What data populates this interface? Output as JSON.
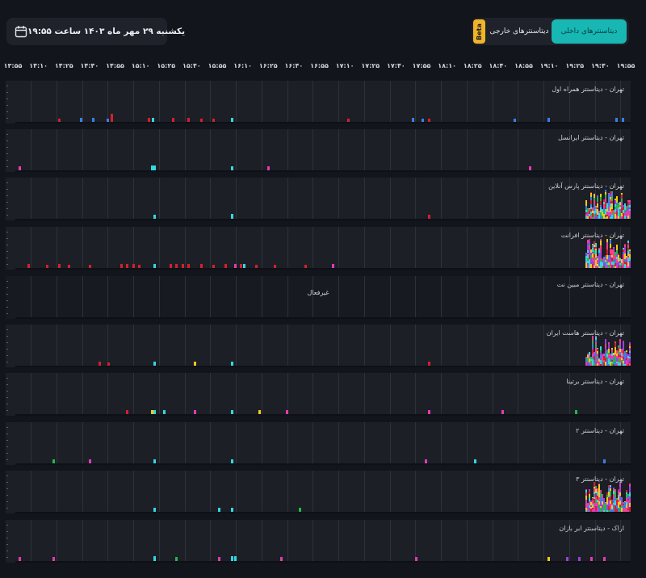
{
  "header": {
    "date_text": "یکشنبه ۲۹ مهر ماه ۱۴۰۳ ساعت ۱۹:۵۵",
    "calendar_icon": "calendar-icon",
    "tabs": {
      "beta": "Beta",
      "external": "دیتاسنترهای خارجی",
      "internal": "دیتاسنترهای داخلی"
    },
    "colors": {
      "accent": "#18b7b4",
      "beta": "#f0b32a"
    }
  },
  "time_axis": [
    "۱۳:۵۵",
    "۱۴:۱۰",
    "۱۴:۲۵",
    "۱۴:۴۰",
    "۱۴:۵۵",
    "۱۵:۱۰",
    "۱۵:۲۵",
    "۱۵:۴۰",
    "۱۵:۵۵",
    "۱۶:۱۰",
    "۱۶:۲۵",
    "۱۶:۴۰",
    "۱۶:۵۵",
    "۱۷:۱۰",
    "۱۷:۲۵",
    "۱۷:۴۰",
    "۱۷:۵۵",
    "۱۸:۱۰",
    "۱۸:۲۵",
    "۱۸:۴۰",
    "۱۸:۵۵",
    "۱۹:۱۰",
    "۱۹:۲۵",
    "۱۹:۴۰",
    "۱۹:۵۵"
  ],
  "panels": [
    {
      "title": "تهران - دیتاسنتر همراه اول",
      "status": "active"
    },
    {
      "title": "تهران - دیتاسنتر ایرانسل",
      "status": "active"
    },
    {
      "title": "تهران - دیتاسنتر پارس آنلاین",
      "status": "active"
    },
    {
      "title": "تهران - دیتاسنتر افرانت",
      "status": "active"
    },
    {
      "title": "تهران - دیتاسنتر مبین نت",
      "status": "inactive",
      "inactive_label": "غیرفعال"
    },
    {
      "title": "تهران - دیتاسنتر هاست ایران",
      "status": "active"
    },
    {
      "title": "تهران - دیتاسنتر برتینا",
      "status": "active"
    },
    {
      "title": "تهران - دیتاسنتر ۲",
      "status": "active"
    },
    {
      "title": "تهران - دیتاسنتر ۳",
      "status": "active"
    },
    {
      "title": "اراک - دیتاسنتر ابر بازان",
      "status": "active"
    }
  ],
  "colors": {
    "red": "#d3202f",
    "cyan": "#35d7e0",
    "blue": "#3b7fe3",
    "magenta": "#e13bb3",
    "pink": "#ff3e8a",
    "yellow": "#f4c81d",
    "green": "#22b84a",
    "purple": "#9c3fe0"
  }
}
